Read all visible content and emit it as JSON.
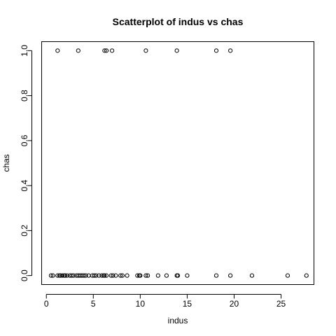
{
  "chart_data": {
    "type": "scatter",
    "title": "Scatterplot of indus vs chas",
    "xlabel": "indus",
    "ylabel": "chas",
    "xlim": [
      -0.5,
      28.5
    ],
    "ylim": [
      -0.04,
      1.04
    ],
    "grid": false,
    "x_ticks": [
      0,
      5,
      10,
      15,
      20,
      25
    ],
    "x_tick_labels": [
      "0",
      "5",
      "10",
      "15",
      "20",
      "25"
    ],
    "y_ticks": [
      0.0,
      0.2,
      0.4,
      0.6,
      0.8,
      1.0
    ],
    "y_tick_labels": [
      "0.0",
      "0.2",
      "0.4",
      "0.6",
      "0.8",
      "1.0"
    ],
    "points": [
      {
        "x": 1.2,
        "y": 1.0
      },
      {
        "x": 3.4,
        "y": 1.0
      },
      {
        "x": 6.2,
        "y": 1.0
      },
      {
        "x": 6.4,
        "y": 1.0
      },
      {
        "x": 7.0,
        "y": 1.0
      },
      {
        "x": 10.6,
        "y": 1.0
      },
      {
        "x": 13.9,
        "y": 1.0
      },
      {
        "x": 18.1,
        "y": 1.0
      },
      {
        "x": 19.6,
        "y": 1.0
      },
      {
        "x": 0.5,
        "y": 0.0
      },
      {
        "x": 0.7,
        "y": 0.0
      },
      {
        "x": 1.2,
        "y": 0.0
      },
      {
        "x": 1.4,
        "y": 0.0
      },
      {
        "x": 1.5,
        "y": 0.0
      },
      {
        "x": 1.7,
        "y": 0.0
      },
      {
        "x": 1.9,
        "y": 0.0
      },
      {
        "x": 2.0,
        "y": 0.0
      },
      {
        "x": 2.2,
        "y": 0.0
      },
      {
        "x": 2.5,
        "y": 0.0
      },
      {
        "x": 2.7,
        "y": 0.0
      },
      {
        "x": 2.9,
        "y": 0.0
      },
      {
        "x": 3.2,
        "y": 0.0
      },
      {
        "x": 3.4,
        "y": 0.0
      },
      {
        "x": 3.6,
        "y": 0.0
      },
      {
        "x": 3.8,
        "y": 0.0
      },
      {
        "x": 4.0,
        "y": 0.0
      },
      {
        "x": 4.2,
        "y": 0.0
      },
      {
        "x": 4.5,
        "y": 0.0
      },
      {
        "x": 4.9,
        "y": 0.0
      },
      {
        "x": 5.1,
        "y": 0.0
      },
      {
        "x": 5.3,
        "y": 0.0
      },
      {
        "x": 5.6,
        "y": 0.0
      },
      {
        "x": 5.9,
        "y": 0.0
      },
      {
        "x": 6.1,
        "y": 0.0
      },
      {
        "x": 6.2,
        "y": 0.0
      },
      {
        "x": 6.4,
        "y": 0.0
      },
      {
        "x": 6.9,
        "y": 0.0
      },
      {
        "x": 7.1,
        "y": 0.0
      },
      {
        "x": 7.4,
        "y": 0.0
      },
      {
        "x": 7.9,
        "y": 0.0
      },
      {
        "x": 8.1,
        "y": 0.0
      },
      {
        "x": 8.6,
        "y": 0.0
      },
      {
        "x": 9.7,
        "y": 0.0
      },
      {
        "x": 9.9,
        "y": 0.0
      },
      {
        "x": 10.0,
        "y": 0.0
      },
      {
        "x": 10.6,
        "y": 0.0
      },
      {
        "x": 10.8,
        "y": 0.0
      },
      {
        "x": 11.9,
        "y": 0.0
      },
      {
        "x": 12.8,
        "y": 0.0
      },
      {
        "x": 13.9,
        "y": 0.0
      },
      {
        "x": 14.0,
        "y": 0.0
      },
      {
        "x": 15.0,
        "y": 0.0
      },
      {
        "x": 18.1,
        "y": 0.0
      },
      {
        "x": 19.6,
        "y": 0.0
      },
      {
        "x": 21.9,
        "y": 0.0
      },
      {
        "x": 25.7,
        "y": 0.0
      },
      {
        "x": 27.7,
        "y": 0.0
      }
    ]
  }
}
